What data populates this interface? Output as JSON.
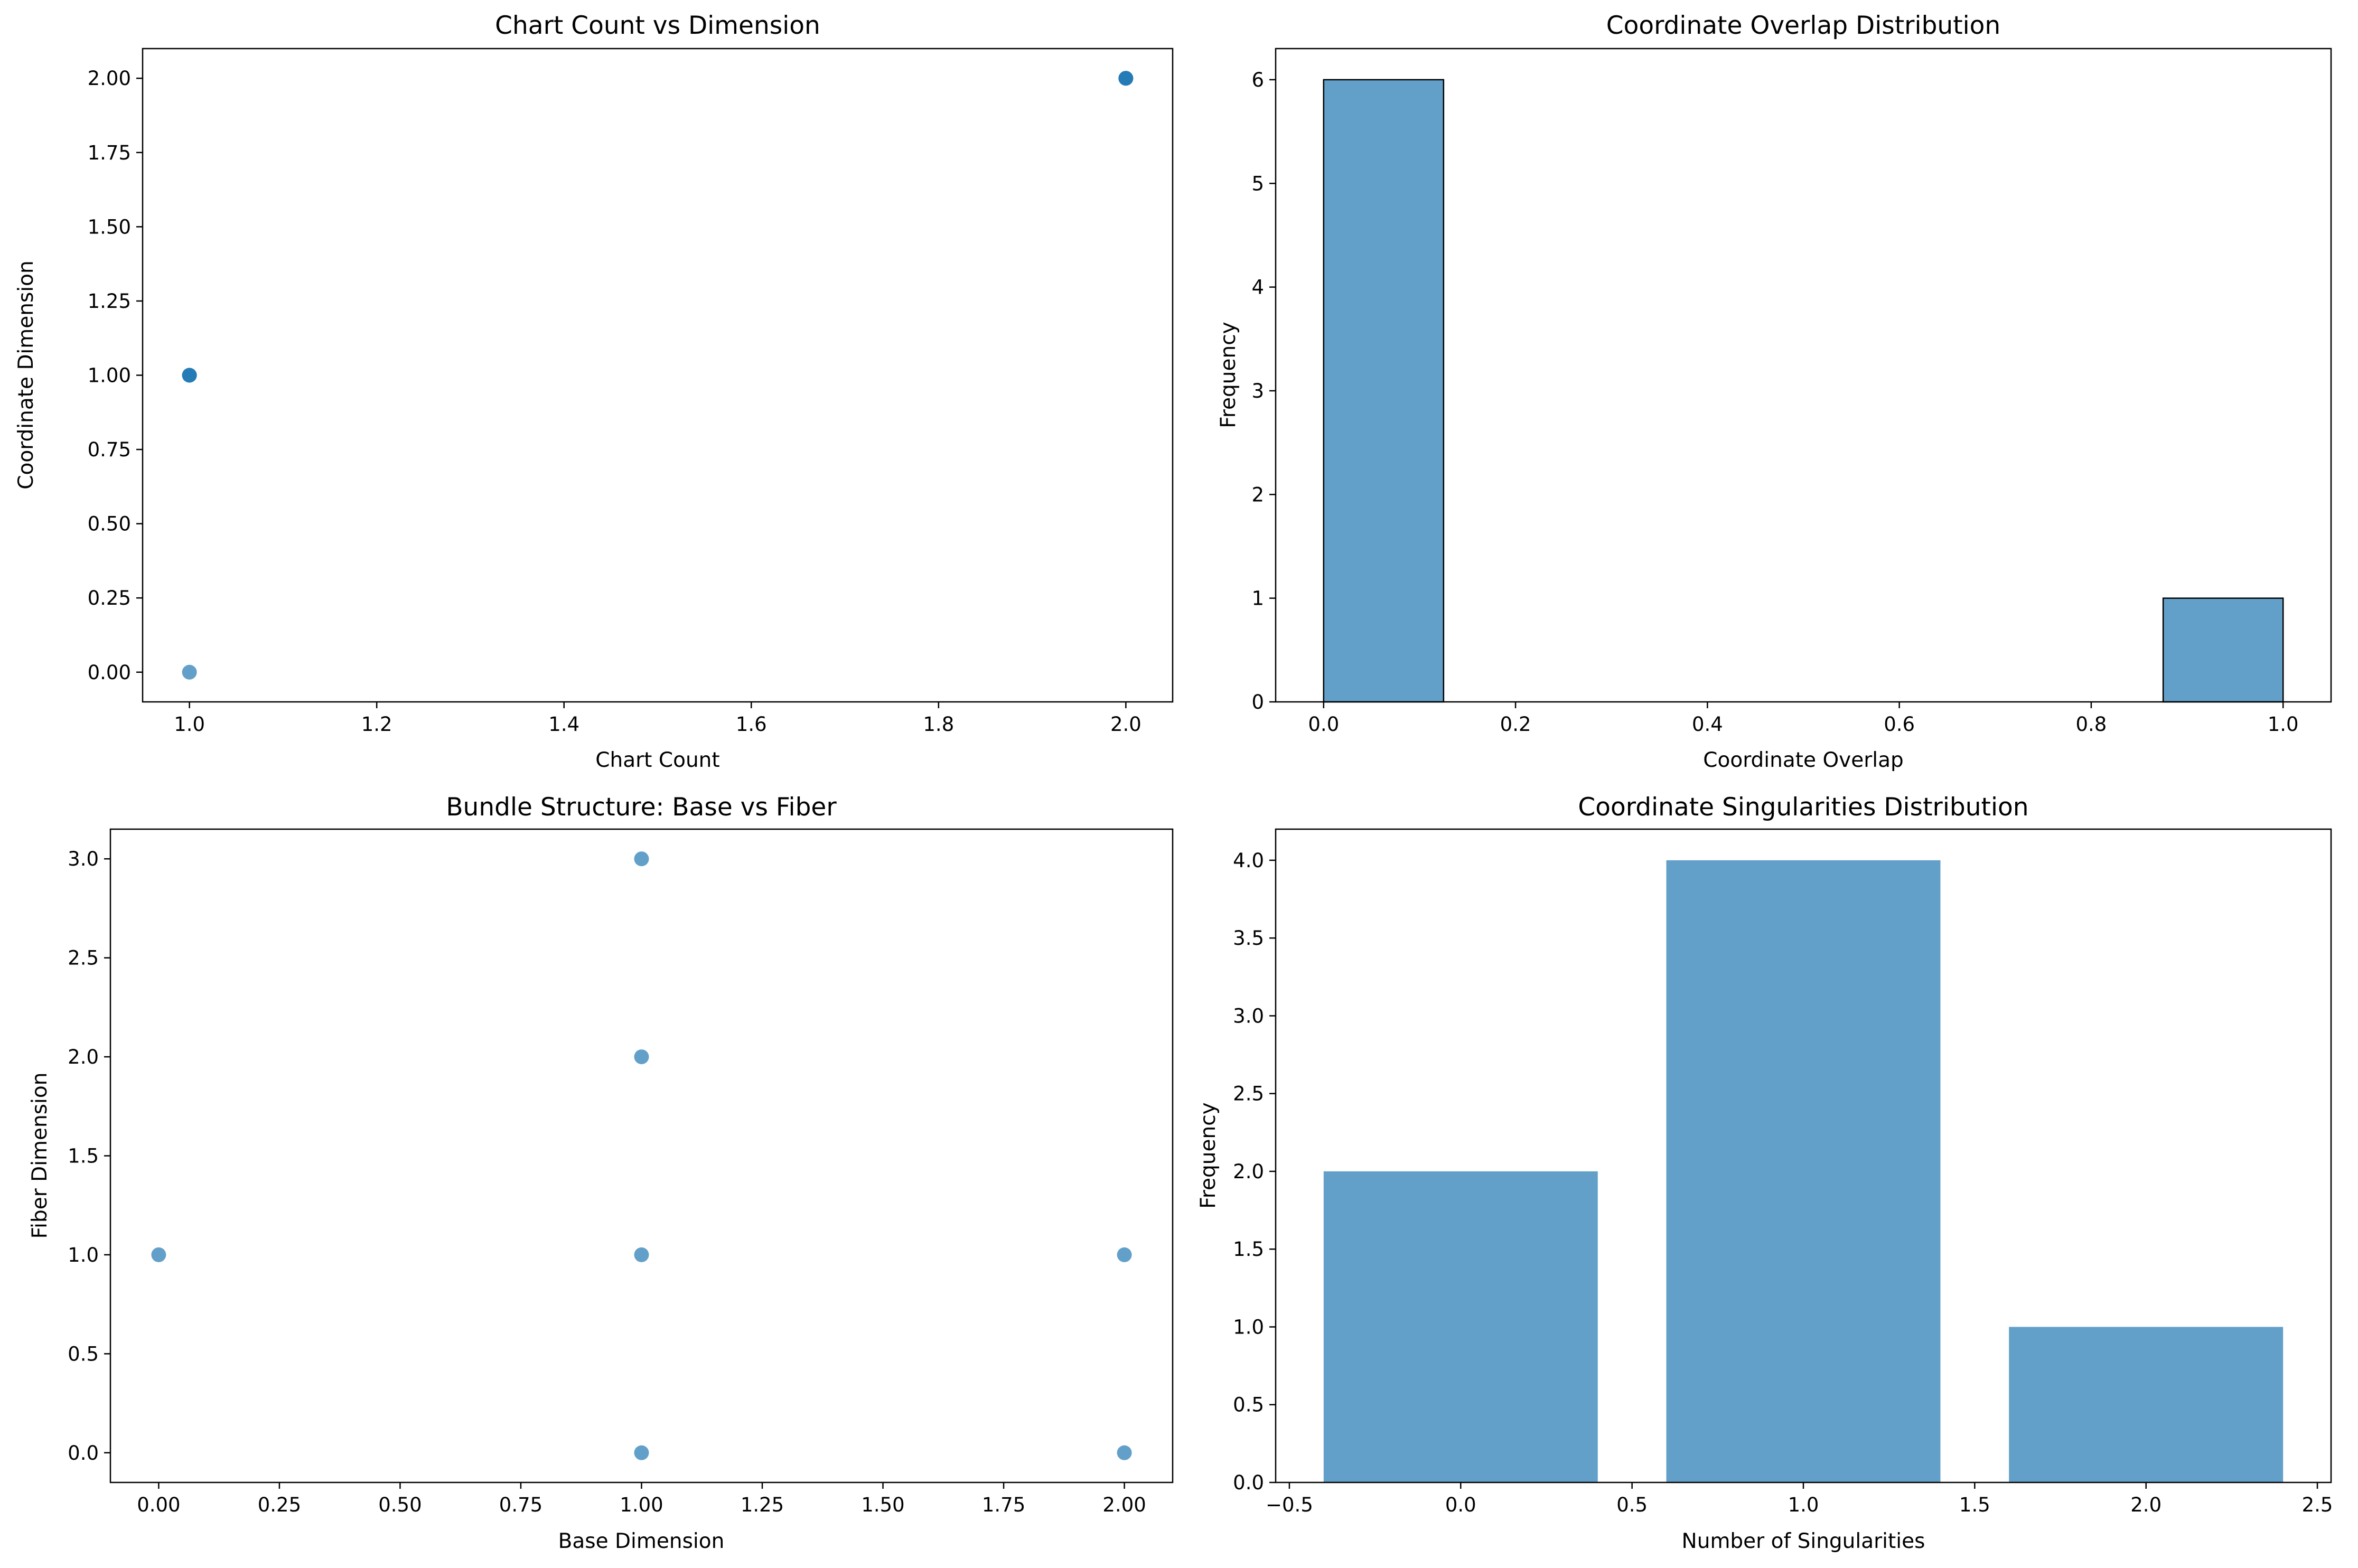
{
  "figure": {
    "background": "#ffffff",
    "mark_color": "#1f77b4"
  },
  "chart_data": [
    {
      "type": "scatter",
      "title": "Chart Count vs Dimension",
      "xlabel": "Chart Count",
      "ylabel": "Coordinate Dimension",
      "xlim": [
        0.95,
        2.05
      ],
      "ylim": [
        -0.1,
        2.1
      ],
      "xticks": [
        1.0,
        1.2,
        1.4,
        1.6,
        1.8,
        2.0
      ],
      "yticks": [
        0.0,
        0.25,
        0.5,
        0.75,
        1.0,
        1.25,
        1.5,
        1.75,
        2.0
      ],
      "x_decimals": 1,
      "y_decimals": 2,
      "points": [
        {
          "x": 1,
          "y": 0
        },
        {
          "x": 1,
          "y": 1
        },
        {
          "x": 1,
          "y": 1
        },
        {
          "x": 1,
          "y": 1
        },
        {
          "x": 2,
          "y": 2
        },
        {
          "x": 2,
          "y": 2
        },
        {
          "x": 2,
          "y": 2
        }
      ],
      "alpha": 0.7,
      "grid": false
    },
    {
      "type": "bar",
      "subtype": "histogram",
      "title": "Coordinate Overlap Distribution",
      "xlabel": "Coordinate Overlap",
      "ylabel": "Frequency",
      "xlim": [
        -0.05,
        1.05
      ],
      "ylim": [
        0,
        6.3
      ],
      "xticks": [
        0.0,
        0.2,
        0.4,
        0.6,
        0.8,
        1.0
      ],
      "yticks": [
        0,
        1,
        2,
        3,
        4,
        5,
        6
      ],
      "x_decimals": 1,
      "y_decimals": 0,
      "bin_edges": [
        0.0,
        0.125,
        0.25,
        0.375,
        0.5,
        0.625,
        0.75,
        0.875,
        1.0
      ],
      "counts": [
        6,
        0,
        0,
        0,
        0,
        0,
        0,
        1
      ],
      "edgecolor": "#000000",
      "alpha": 0.7,
      "grid": false
    },
    {
      "type": "scatter",
      "title": "Bundle Structure: Base vs Fiber",
      "xlabel": "Base Dimension",
      "ylabel": "Fiber Dimension",
      "xlim": [
        -0.1,
        2.1
      ],
      "ylim": [
        -0.15,
        3.15
      ],
      "xticks": [
        0.0,
        0.25,
        0.5,
        0.75,
        1.0,
        1.25,
        1.5,
        1.75,
        2.0
      ],
      "yticks": [
        0.0,
        0.5,
        1.0,
        1.5,
        2.0,
        2.5,
        3.0
      ],
      "x_decimals": 2,
      "y_decimals": 1,
      "points": [
        {
          "x": 0,
          "y": 1
        },
        {
          "x": 1,
          "y": 3
        },
        {
          "x": 1,
          "y": 2
        },
        {
          "x": 1,
          "y": 1
        },
        {
          "x": 1,
          "y": 0
        },
        {
          "x": 2,
          "y": 1
        },
        {
          "x": 2,
          "y": 0
        }
      ],
      "alpha": 0.7,
      "grid": false
    },
    {
      "type": "bar",
      "title": "Coordinate Singularities Distribution",
      "xlabel": "Number of Singularities",
      "ylabel": "Frequency",
      "xlim": [
        -0.54,
        2.54
      ],
      "ylim": [
        0,
        4.2
      ],
      "xticks": [
        -0.5,
        0.0,
        0.5,
        1.0,
        1.5,
        2.0,
        2.5
      ],
      "yticks": [
        0.0,
        0.5,
        1.0,
        1.5,
        2.0,
        2.5,
        3.0,
        3.5,
        4.0
      ],
      "x_decimals": 1,
      "y_decimals": 1,
      "categories": [
        0,
        1,
        2
      ],
      "values": [
        2,
        4,
        1
      ],
      "bar_width": 0.8,
      "alpha": 0.7,
      "grid": false
    }
  ]
}
